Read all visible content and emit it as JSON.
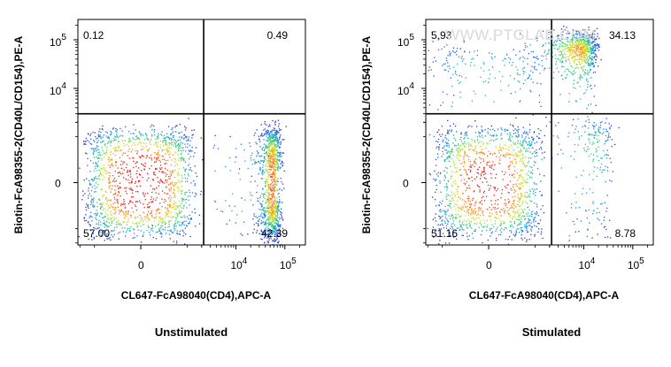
{
  "watermark": "WWW.PTGLAB.COM",
  "chart_data": [
    {
      "type": "scatter",
      "caption": "Unstimulated",
      "xlabel": "CL647-FcA98040(CD4),APC-A",
      "ylabel": "Biotin-FcA98355-2(CD40L/CD154),PE-A",
      "x_scale": "biexponential",
      "y_scale": "biexponential",
      "x_ticks": [
        {
          "value": 0,
          "base": "0",
          "exp": ""
        },
        {
          "value": 10000,
          "base": "10",
          "exp": "4"
        },
        {
          "value": 100000,
          "base": "10",
          "exp": "5"
        }
      ],
      "y_ticks": [
        {
          "value": 0,
          "base": "0",
          "exp": ""
        },
        {
          "value": 10000,
          "base": "10",
          "exp": "4"
        },
        {
          "value": 100000,
          "base": "10",
          "exp": "5"
        }
      ],
      "gate": {
        "x": 2200,
        "y": 3000
      },
      "quadrants": {
        "top_left": "0.12",
        "top_right": "0.49",
        "bottom_left": "57.00",
        "bottom_right": "42.39"
      },
      "populations": [
        {
          "center": [
            0,
            0
          ],
          "spread": [
            650,
            700
          ],
          "weight": 0.55
        },
        {
          "center": [
            55000,
            0
          ],
          "spread": [
            14000,
            750
          ],
          "weight": 0.42
        },
        {
          "center": [
            15000,
            0
          ],
          "spread": [
            14000,
            500
          ],
          "weight": 0.03
        }
      ]
    },
    {
      "type": "scatter",
      "caption": "Stimulated",
      "xlabel": "CL647-FcA98040(CD4),APC-A",
      "ylabel": "Biotin-FcA98355-2(CD40L/CD154),PE-A",
      "x_scale": "biexponential",
      "y_scale": "biexponential",
      "x_ticks": [
        {
          "value": 0,
          "base": "0",
          "exp": ""
        },
        {
          "value": 10000,
          "base": "10",
          "exp": "4"
        },
        {
          "value": 100000,
          "base": "10",
          "exp": "5"
        }
      ],
      "y_ticks": [
        {
          "value": 0,
          "base": "0",
          "exp": ""
        },
        {
          "value": 10000,
          "base": "10",
          "exp": "4"
        },
        {
          "value": 100000,
          "base": "10",
          "exp": "5"
        }
      ],
      "gate": {
        "x": 2200,
        "y": 3000
      },
      "quadrants": {
        "top_left": "5.93",
        "top_right": "34.13",
        "bottom_left": "51.16",
        "bottom_right": "8.78"
      },
      "populations": [
        {
          "center": [
            0,
            0
          ],
          "spread": [
            600,
            700
          ],
          "weight": 0.5
        },
        {
          "center": [
            0,
            20000
          ],
          "spread": [
            700,
            22000
          ],
          "weight": 0.07
        },
        {
          "center": [
            8000,
            60000
          ],
          "spread": [
            5000,
            40000
          ],
          "weight": 0.34
        },
        {
          "center": [
            15000,
            600
          ],
          "spread": [
            12000,
            900
          ],
          "weight": 0.09
        }
      ]
    }
  ]
}
